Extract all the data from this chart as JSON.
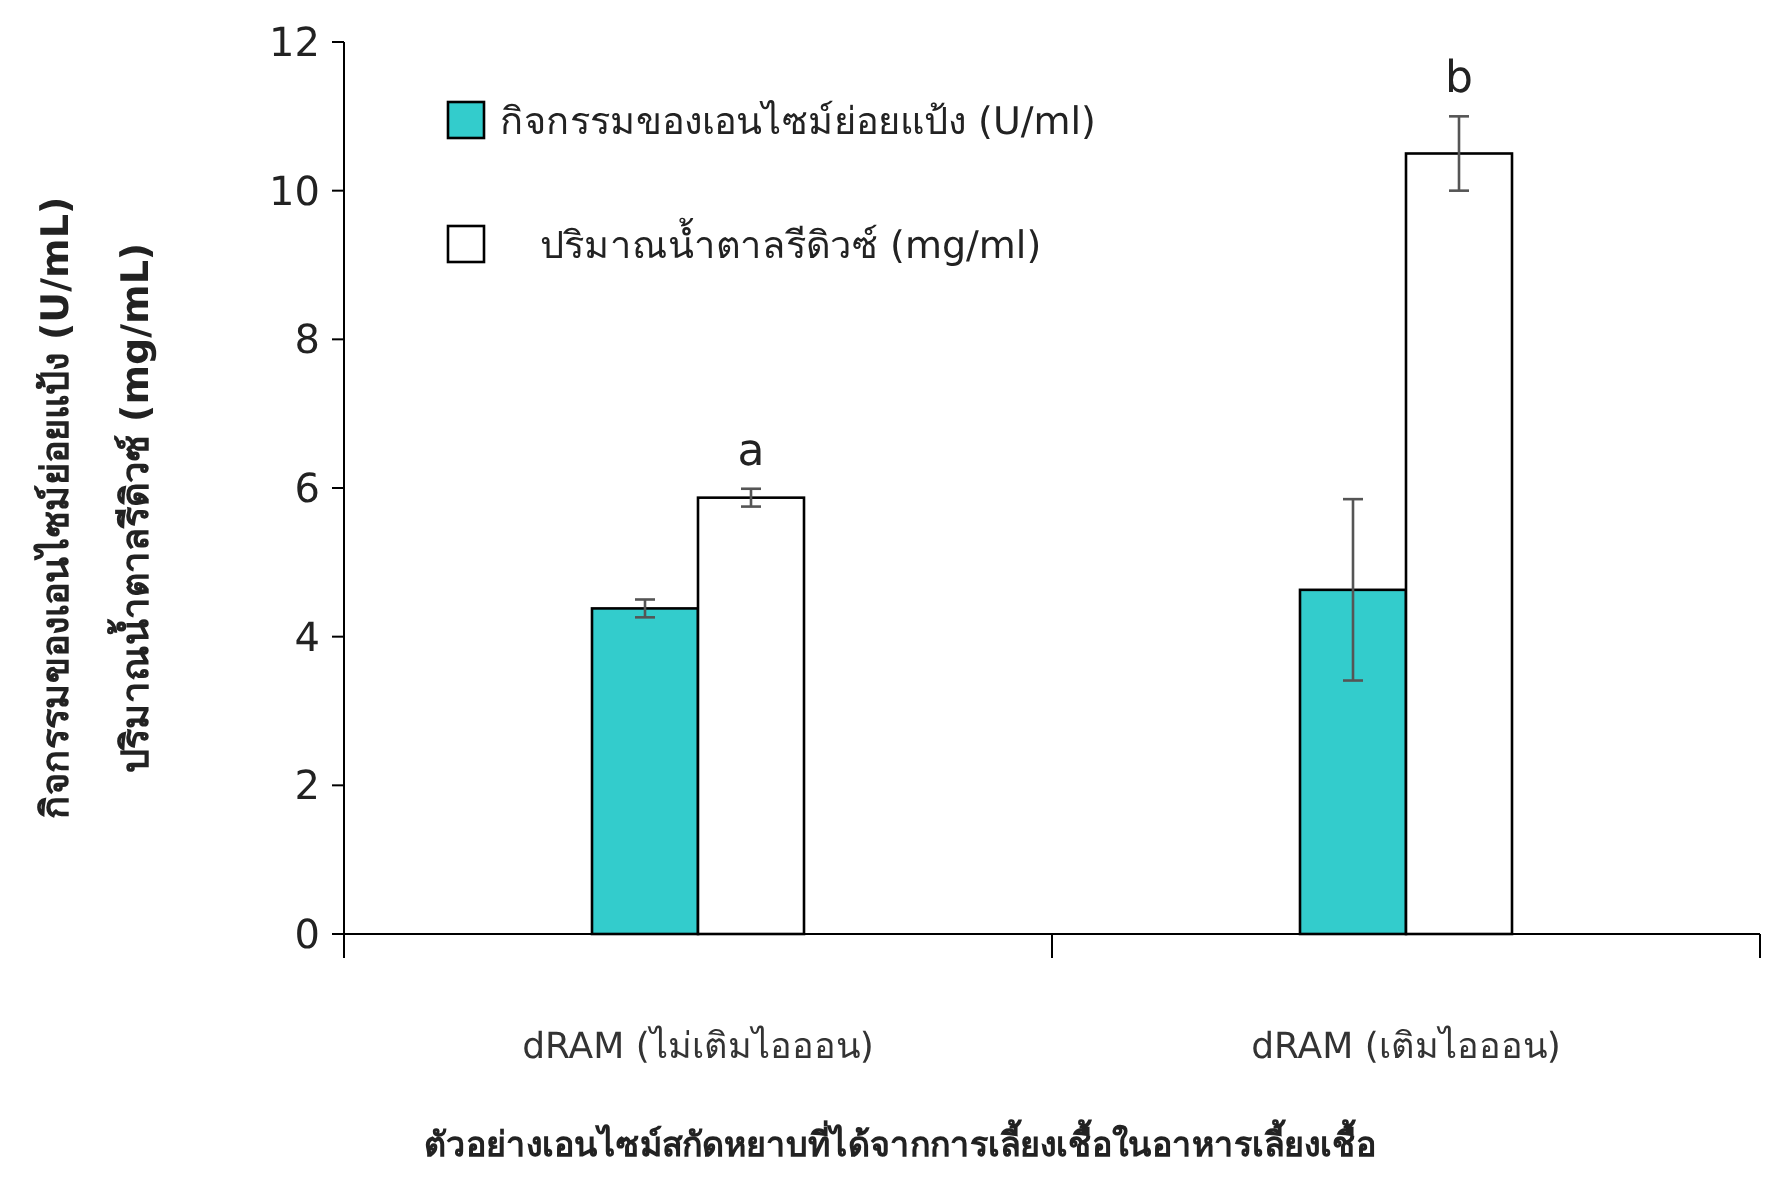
{
  "chart_data": {
    "type": "bar",
    "xlabel": "ตัวอย่างเอนไซม์สกัดหยาบที่ได้จากการเลี้ยงเชื้อในอาหารเลี้ยงเชื้อ",
    "ylabel": "กิจกรรมของเอนไซม์ย่อยแป้ง (U/mL) ปริมาณน้ำตาลรีดิวซ์ (mg/mL)",
    "categories": [
      "dRAM (ไม่เติมไอออน)",
      "dRAM (เติมไอออน)"
    ],
    "series": [
      {
        "name": "กิจกรรมของเอนไซม์ย่อยแป้ง (U/ml)",
        "color": "#33cccc",
        "values": [
          4.38,
          4.63
        ],
        "errors": [
          0.12,
          1.22
        ]
      },
      {
        "name": "ปริมาณน้ำตาลรีดิวซ์ (mg/ml)",
        "color": "#ffffff",
        "values": [
          5.87,
          10.5
        ],
        "errors": [
          0.12,
          0.5
        ]
      }
    ],
    "annotations": [
      {
        "text": "a",
        "x": "dRAM (ไม่เติมไอออน)",
        "y": 5.87
      },
      {
        "text": "b",
        "x": "dRAM (เติมไอออน)",
        "y": 10.5
      }
    ],
    "ylim": [
      0,
      12
    ],
    "yticks": [
      0,
      2,
      4,
      6,
      8,
      10,
      12
    ],
    "grid": false,
    "legend": "top left"
  }
}
